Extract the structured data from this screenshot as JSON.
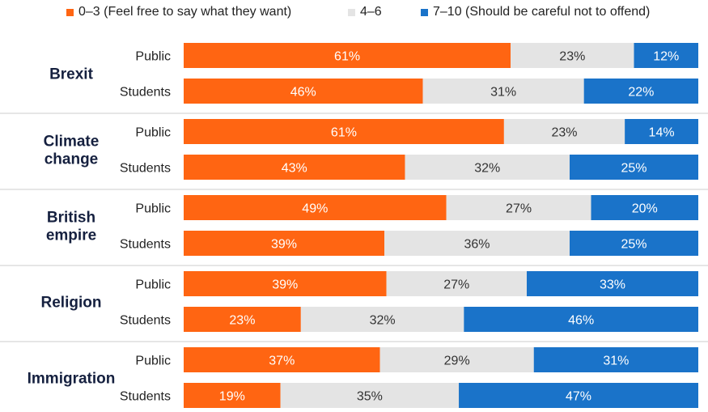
{
  "chart_data": {
    "type": "bar",
    "orientation": "horizontal",
    "stacked": true,
    "normalized_to": 100,
    "legend": [
      {
        "key": "0-3",
        "label": "0–3 (Feel free to say what they want)",
        "color": "#ff6512"
      },
      {
        "key": "4-6",
        "label": "4–6",
        "color": "#e4e4e4"
      },
      {
        "key": "7-10",
        "label": "7–10 (Should be careful not to offend)",
        "color": "#1a73c9"
      }
    ],
    "value_suffix": "%",
    "groups": [
      {
        "topic": "Brexit",
        "rows": [
          {
            "label": "Public",
            "values": [
              61,
              23,
              12
            ]
          },
          {
            "label": "Students",
            "values": [
              46,
              31,
              22
            ]
          }
        ]
      },
      {
        "topic": "Climate change",
        "topic_lines": [
          "Climate",
          "change"
        ],
        "rows": [
          {
            "label": "Public",
            "values": [
              61,
              23,
              14
            ]
          },
          {
            "label": "Students",
            "values": [
              43,
              32,
              25
            ]
          }
        ]
      },
      {
        "topic": "British empire",
        "topic_lines": [
          "British",
          "empire"
        ],
        "rows": [
          {
            "label": "Public",
            "values": [
              49,
              27,
              20
            ]
          },
          {
            "label": "Students",
            "values": [
              39,
              36,
              25
            ]
          }
        ]
      },
      {
        "topic": "Religion",
        "rows": [
          {
            "label": "Public",
            "values": [
              39,
              27,
              33
            ]
          },
          {
            "label": "Students",
            "values": [
              23,
              32,
              46
            ]
          }
        ]
      },
      {
        "topic": "Immigration",
        "rows": [
          {
            "label": "Public",
            "values": [
              37,
              29,
              31
            ]
          },
          {
            "label": "Students",
            "values": [
              19,
              35,
              47
            ]
          }
        ]
      }
    ]
  }
}
